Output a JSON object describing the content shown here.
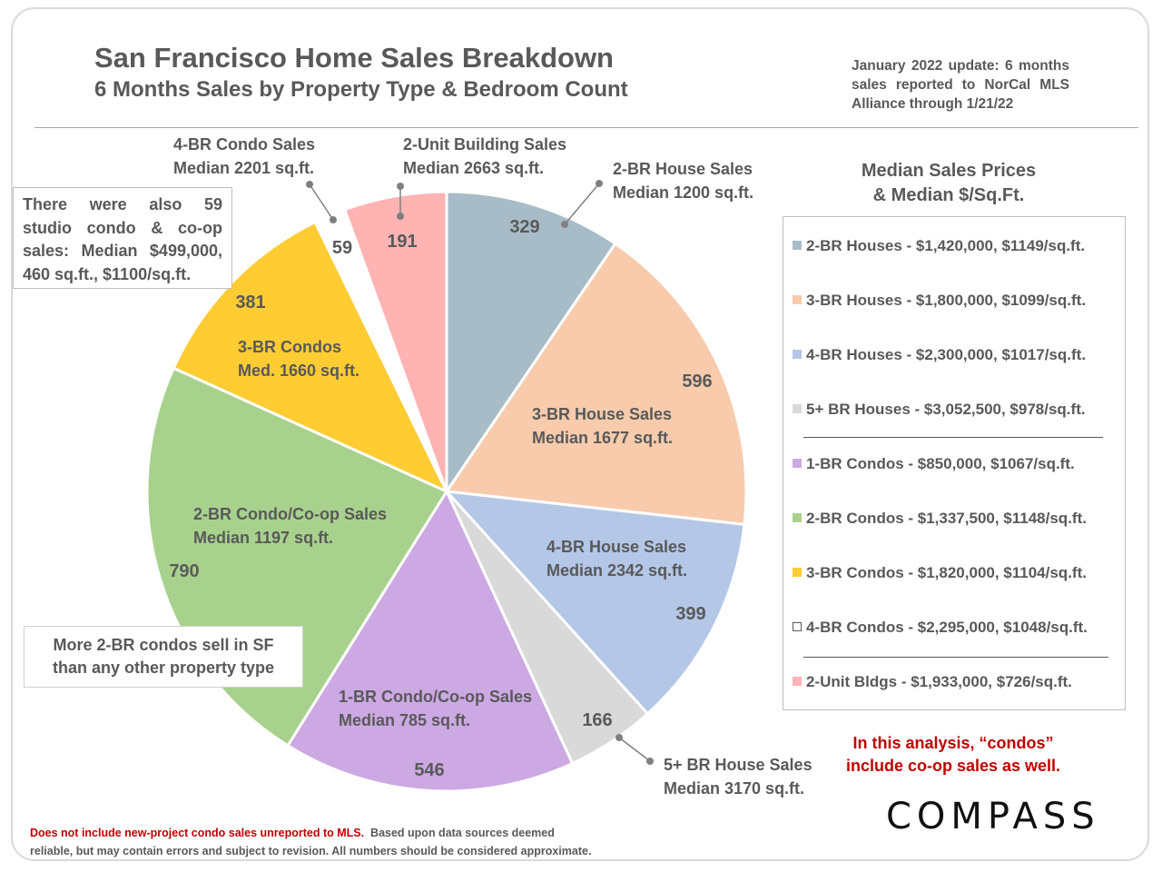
{
  "header": {
    "title": "San Francisco Home Sales Breakdown",
    "subtitle": "6 Months Sales by Property Type & Bedroom Count",
    "update_note": "January 2022 update: 6 months sales reported to NorCal MLS Alliance through 1/21/22"
  },
  "chart_data": {
    "type": "pie",
    "title": "San Francisco Home Sales Breakdown",
    "subtitle": "6 Months Sales by Property Type & Bedroom Count",
    "slices": [
      {
        "label_line1": "2-BR House Sales",
        "label_line2": "Median 1200 sq.ft.",
        "value": 329,
        "color": "#a8bcc8"
      },
      {
        "label_line1": "3-BR House Sales",
        "label_line2": "Median 1677 sq.ft.",
        "value": 596,
        "color": "#f7cbac"
      },
      {
        "label_line1": "4-BR House Sales",
        "label_line2": "Median 2342 sq.ft.",
        "value": 399,
        "color": "#b4c7e7"
      },
      {
        "label_line1": "5+ BR House Sales",
        "label_line2": "Median 3170 sq.ft.",
        "value": 166,
        "color": "#d9d9d9"
      },
      {
        "label_line1": "1-BR Condo/Co-op Sales",
        "label_line2": "Median 785 sq.ft.",
        "value": 546,
        "color": "#cca9e3"
      },
      {
        "label_line1": "2-BR Condo/Co-op Sales",
        "label_line2": "Median 1197 sq.ft.",
        "value": 790,
        "color": "#a9d18e"
      },
      {
        "label_line1": "3-BR Condos",
        "label_line2": "Med. 1660 sq.ft.",
        "value": 381,
        "color": "#ffcc33"
      },
      {
        "label_line1": "4-BR Condo Sales",
        "label_line2": "Median 2201 sq.ft.",
        "value": 59,
        "color": "#ffffff"
      },
      {
        "label_line1": "2-Unit Building Sales",
        "label_line2": "Median 2663 sq.ft.",
        "value": 191,
        "color": "#ffb3b3"
      }
    ]
  },
  "annotations": {
    "studio_note": "There were also 59 studio condo & co-op sales: Median $499,000, 460 sq.ft., $1100/sq.ft.",
    "more_condos_line1": "More 2-BR condos sell in SF",
    "more_condos_line2": "than any other property type"
  },
  "legend": {
    "title_line1": "Median Sales Prices",
    "title_line2": "& Median $/Sq.Ft.",
    "items": [
      {
        "text": "2-BR Houses - $1,420,000, $1149/sq.ft.",
        "color": "#a8bcc8"
      },
      {
        "text": "3-BR Houses - $1,800,000, $1099/sq.ft.",
        "color": "#f7cbac"
      },
      {
        "text": "4-BR Houses - $2,300,000, $1017/sq.ft.",
        "color": "#b4c7e7"
      },
      {
        "text": "5+ BR Houses - $3,052,500, $978/sq.ft.",
        "color": "#d9d9d9"
      },
      {
        "text": "1-BR Condos - $850,000, $1067/sq.ft.",
        "color": "#cca9e3"
      },
      {
        "text": "2-BR Condos - $1,337,500, $1148/sq.ft.",
        "color": "#a9d18e"
      },
      {
        "text": "3-BR Condos - $1,820,000, $1104/sq.ft.",
        "color": "#ffcc33"
      },
      {
        "text": "4-BR Condos - $2,295,000, $1048/sq.ft.",
        "color": "#ffffff"
      },
      {
        "text": "2-Unit Bldgs - $1,933,000, $726/sq.ft.",
        "color": "#ffb3b3"
      }
    ]
  },
  "condo_note_line1": "In this analysis, “condos”",
  "condo_note_line2": "include co-op sales as well.",
  "logo": "COMPASS",
  "footer": {
    "disclaimer_red": "Does not include new-project condo sales unreported to MLS.",
    "disclaimer_line1_rest": "Based upon data sources deemed",
    "disclaimer_line2": "reliable, but may contain errors and subject to revision. All numbers should be considered approximate."
  }
}
